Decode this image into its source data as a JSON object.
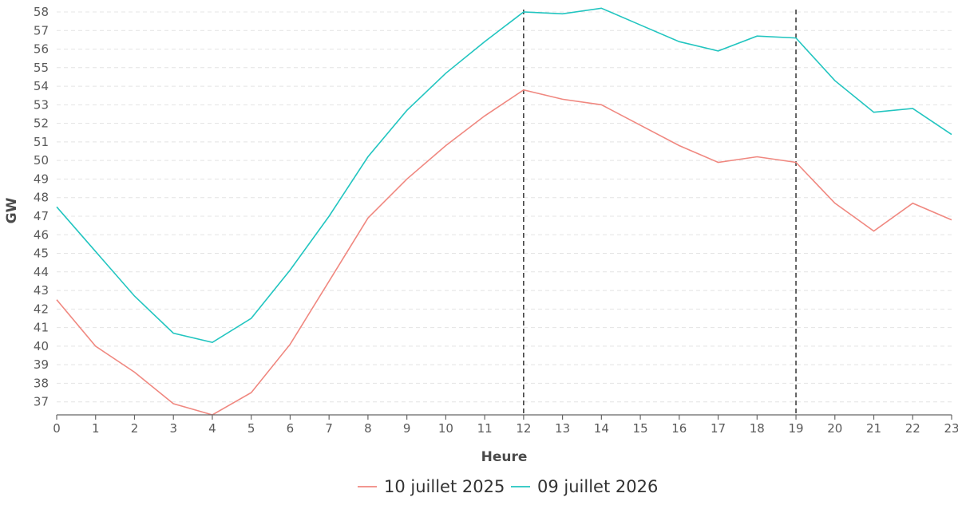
{
  "chart_data": {
    "type": "line",
    "xlabel": "Heure",
    "ylabel": "GW",
    "x": [
      0,
      1,
      2,
      3,
      4,
      5,
      6,
      7,
      8,
      9,
      10,
      11,
      12,
      13,
      14,
      15,
      16,
      17,
      18,
      19,
      20,
      21,
      22,
      23
    ],
    "xlim": [
      0,
      23
    ],
    "ylim": [
      36.3,
      58.3
    ],
    "y_ticks": [
      37,
      38,
      39,
      40,
      41,
      42,
      43,
      44,
      45,
      46,
      47,
      48,
      49,
      50,
      51,
      52,
      53,
      54,
      55,
      56,
      57,
      58
    ],
    "grid": "horizontal dashed",
    "legend_position": "bottom-center",
    "reference_lines_x": [
      12,
      19
    ],
    "series": [
      {
        "name": "10 juillet 2025",
        "color": "#f08880",
        "values": [
          42.5,
          40.0,
          38.6,
          36.9,
          36.3,
          37.5,
          40.1,
          43.5,
          46.9,
          49.0,
          50.8,
          52.4,
          53.8,
          53.3,
          53.0,
          51.9,
          50.8,
          49.9,
          50.2,
          49.9,
          47.7,
          46.2,
          47.7,
          46.8
        ]
      },
      {
        "name": "09 juillet 2026",
        "color": "#22c5c0",
        "values": [
          47.5,
          45.1,
          42.7,
          40.7,
          40.2,
          41.5,
          44.1,
          47.0,
          50.2,
          52.7,
          54.7,
          56.4,
          58.0,
          57.9,
          58.2,
          57.3,
          56.4,
          55.9,
          56.7,
          56.6,
          54.3,
          52.6,
          52.8,
          51.4
        ]
      }
    ]
  }
}
